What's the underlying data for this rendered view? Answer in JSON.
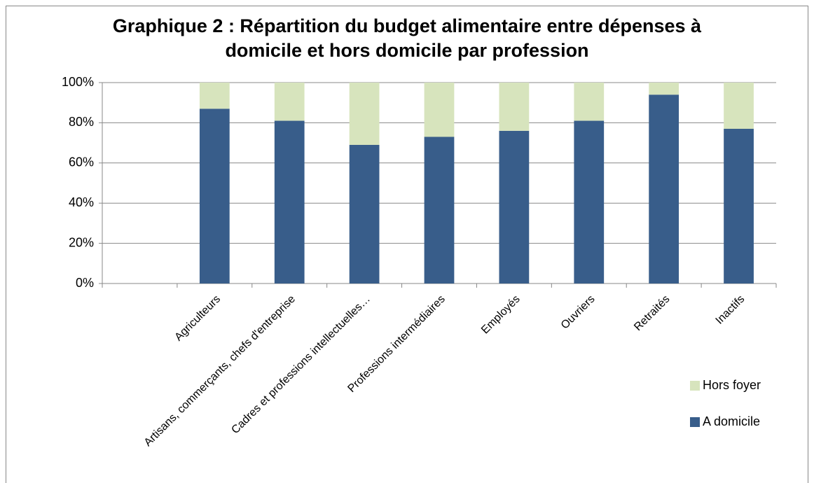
{
  "chart_data": {
    "type": "stacked_bar",
    "title": "Graphique 2 : Répartition du budget alimentaire entre dépenses à domicile et hors domicile par profession",
    "categories": [
      null,
      "Agriculteurs",
      "Artisans, commerçants, chefs d'entreprise",
      "Cadres et professions intellectuelles…",
      "Professions intermédiaires",
      "Employés",
      "Ouvriers",
      "Retraités",
      "Inactifs"
    ],
    "series": [
      {
        "name": "A domicile",
        "color": "#385d8a",
        "values": [
          null,
          87,
          81,
          69,
          73,
          76,
          81,
          94,
          77
        ]
      },
      {
        "name": "Hors foyer",
        "color": "#d7e4bd",
        "values": [
          null,
          13,
          19,
          31,
          27,
          24,
          19,
          6,
          23
        ]
      }
    ],
    "ylim": [
      0,
      100
    ],
    "yticks": [
      {
        "value": 0,
        "label": "0%"
      },
      {
        "value": 20,
        "label": "20%"
      },
      {
        "value": 40,
        "label": "40%"
      },
      {
        "value": 60,
        "label": "60%"
      },
      {
        "value": 80,
        "label": "80%"
      },
      {
        "value": 100,
        "label": "100%"
      }
    ],
    "grid": true,
    "legend": "right"
  }
}
